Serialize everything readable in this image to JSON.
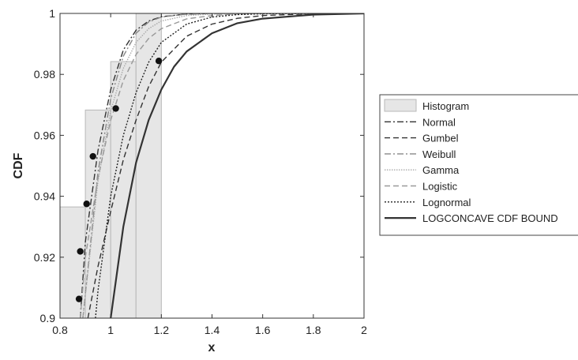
{
  "chart_data": {
    "type": "line",
    "title": "",
    "xlabel": "x",
    "ylabel": "CDF",
    "xlim": [
      0.8,
      2
    ],
    "ylim": [
      0.9,
      1
    ],
    "xticks": [
      "0.8",
      "1",
      "1.2",
      "1.4",
      "1.6",
      "1.8",
      "2"
    ],
    "yticks": [
      "0.9",
      "0.92",
      "0.94",
      "0.96",
      "0.98",
      "1"
    ],
    "grid": false,
    "legend_position": "right outside",
    "histogram": {
      "name": "Histogram",
      "color": "#e6e6e6",
      "bins": [
        {
          "x0": 0.8,
          "x1": 0.9,
          "value": 0.9365
        },
        {
          "x0": 0.9,
          "x1": 1.0,
          "value": 0.9683
        },
        {
          "x0": 1.0,
          "x1": 1.1,
          "value": 0.9842
        },
        {
          "x0": 1.1,
          "x1": 1.2,
          "value": 1.0
        }
      ]
    },
    "points": {
      "x": [
        0.875,
        0.88,
        0.905,
        0.93,
        1.02,
        1.19
      ],
      "y": [
        0.9063,
        0.9219,
        0.9375,
        0.9531,
        0.9688,
        0.9844
      ]
    },
    "series": [
      {
        "name": "Normal",
        "color": "#333333",
        "dash": "8,3,2,3",
        "x": [
          0.88,
          0.9,
          0.95,
          1.0,
          1.05,
          1.1,
          1.15,
          1.2,
          1.3,
          1.4,
          1.6,
          2.0
        ],
        "y": [
          0.9,
          0.925,
          0.955,
          0.975,
          0.988,
          0.9945,
          0.9975,
          0.9989,
          0.9998,
          1.0,
          1.0,
          1.0
        ]
      },
      {
        "name": "Gumbel",
        "color": "#333333",
        "dash": "7,4",
        "x": [
          0.91,
          0.95,
          1.0,
          1.05,
          1.1,
          1.15,
          1.2,
          1.3,
          1.4,
          1.5,
          1.6,
          1.8,
          2.0
        ],
        "y": [
          0.9,
          0.917,
          0.935,
          0.952,
          0.965,
          0.976,
          0.984,
          0.9925,
          0.9965,
          0.9984,
          0.9993,
          0.9999,
          1.0
        ]
      },
      {
        "name": "Weibull",
        "color": "#888888",
        "dash": "8,3,2,3",
        "x": [
          0.89,
          0.95,
          1.0,
          1.05,
          1.1,
          1.15,
          1.2,
          1.3,
          1.4,
          1.6,
          2.0
        ],
        "y": [
          0.9,
          0.948,
          0.972,
          0.986,
          0.9935,
          0.9972,
          0.9988,
          0.9998,
          1.0,
          1.0,
          1.0
        ]
      },
      {
        "name": "Gamma",
        "color": "#aaaaaa",
        "dash": "1.5,1.5",
        "x": [
          0.89,
          0.95,
          1.0,
          1.05,
          1.1,
          1.15,
          1.2,
          1.3,
          1.4,
          1.6,
          2.0
        ],
        "y": [
          0.9,
          0.945,
          0.968,
          0.982,
          0.9905,
          0.995,
          0.9975,
          0.9993,
          0.9998,
          1.0,
          1.0
        ]
      },
      {
        "name": "Logistic",
        "color": "#999999",
        "dash": "7,4",
        "x": [
          0.88,
          0.9,
          0.95,
          1.0,
          1.05,
          1.1,
          1.15,
          1.2,
          1.3,
          1.4,
          1.5,
          1.6,
          2.0
        ],
        "y": [
          0.9,
          0.92,
          0.946,
          0.965,
          0.978,
          0.9865,
          0.9918,
          0.995,
          0.9982,
          0.9993,
          0.9998,
          1.0,
          1.0
        ]
      },
      {
        "name": "Lognormal",
        "color": "#222222",
        "dash": "2,2",
        "x": [
          0.94,
          0.95,
          1.0,
          1.05,
          1.1,
          1.15,
          1.2,
          1.3,
          1.4,
          1.5,
          1.6,
          1.8,
          2.0
        ],
        "y": [
          0.9,
          0.909,
          0.94,
          0.96,
          0.974,
          0.984,
          0.9905,
          0.9965,
          0.9988,
          0.9996,
          0.9999,
          1.0,
          1.0
        ]
      },
      {
        "name": "LOGCONCAVE CDF BOUND",
        "color": "#333333",
        "dash": "",
        "x": [
          1.0,
          1.05,
          1.1,
          1.15,
          1.2,
          1.25,
          1.3,
          1.4,
          1.5,
          1.6,
          1.8,
          2.0
        ],
        "y": [
          0.9,
          0.93,
          0.951,
          0.965,
          0.975,
          0.9825,
          0.9875,
          0.9935,
          0.9968,
          0.9983,
          0.9996,
          1.0
        ]
      }
    ]
  }
}
